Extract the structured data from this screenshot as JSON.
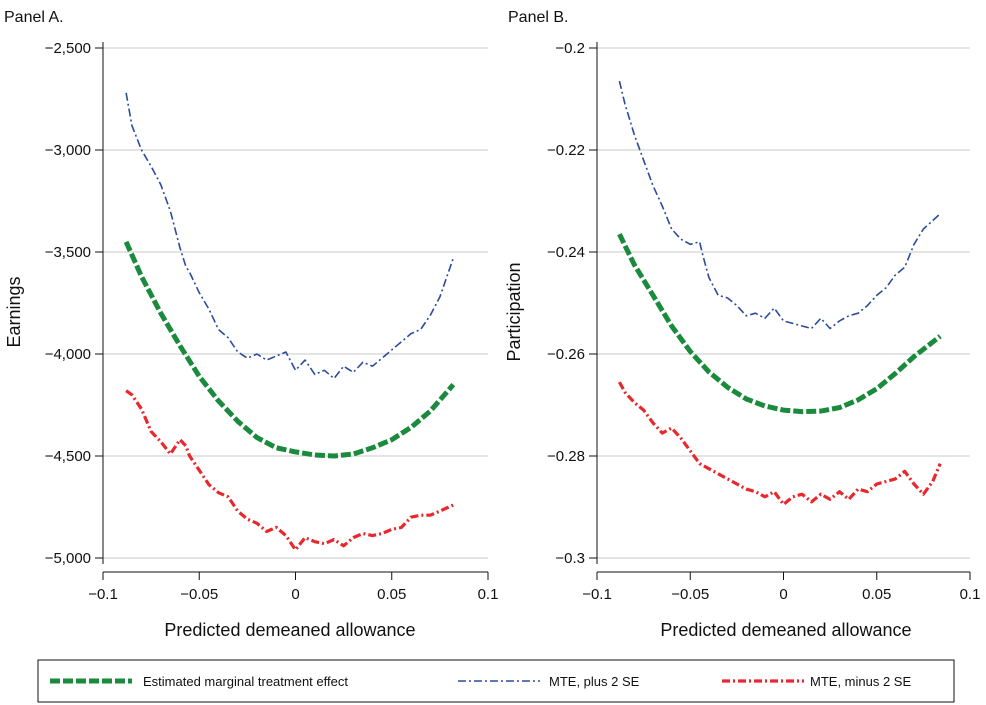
{
  "chart_data": [
    {
      "type": "line",
      "title": "Panel A.",
      "xlabel": "Predicted demeaned allowance",
      "ylabel": "Earnings",
      "xlim": [
        -0.1,
        0.1
      ],
      "ylim": [
        -5000,
        -2500
      ],
      "x_ticks": [
        -0.1,
        -0.05,
        0,
        0.05,
        0.1
      ],
      "x_tick_labels": [
        "−0.1",
        "−0.05",
        "0",
        "0.05",
        "0.1"
      ],
      "y_ticks": [
        -2500,
        -3000,
        -3500,
        -4000,
        -4500,
        -5000
      ],
      "y_tick_labels": [
        "−2,500",
        "−3,000",
        "−3,500",
        "−4,000",
        "−4,500",
        "−5,000"
      ],
      "grid": true,
      "series": [
        {
          "name": "Estimated marginal treatment effect",
          "color": "#1a8a3c",
          "x": [
            -0.088,
            -0.08,
            -0.07,
            -0.06,
            -0.05,
            -0.04,
            -0.03,
            -0.02,
            -0.01,
            0,
            0.01,
            0.02,
            0.03,
            0.04,
            0.05,
            0.06,
            0.07,
            0.082
          ],
          "y": [
            -3450,
            -3620,
            -3800,
            -3960,
            -4110,
            -4230,
            -4330,
            -4410,
            -4460,
            -4480,
            -4495,
            -4500,
            -4490,
            -4460,
            -4420,
            -4360,
            -4280,
            -4150
          ]
        },
        {
          "name": "MTE, plus 2 SE",
          "color": "#2b4c9c",
          "x": [
            -0.088,
            -0.085,
            -0.08,
            -0.075,
            -0.07,
            -0.065,
            -0.06,
            -0.057,
            -0.055,
            -0.05,
            -0.045,
            -0.04,
            -0.035,
            -0.03,
            -0.025,
            -0.02,
            -0.015,
            -0.01,
            -0.005,
            0,
            0.005,
            0.01,
            0.015,
            0.02,
            0.025,
            0.03,
            0.035,
            0.04,
            0.045,
            0.05,
            0.055,
            0.06,
            0.065,
            0.07,
            0.075,
            0.082
          ],
          "y": [
            -2720,
            -2880,
            -3000,
            -3080,
            -3170,
            -3300,
            -3480,
            -3570,
            -3600,
            -3700,
            -3780,
            -3880,
            -3920,
            -3990,
            -4020,
            -4000,
            -4030,
            -4010,
            -3990,
            -4080,
            -4030,
            -4100,
            -4080,
            -4120,
            -4060,
            -4090,
            -4040,
            -4060,
            -4020,
            -3980,
            -3940,
            -3900,
            -3880,
            -3810,
            -3720,
            -3530
          ]
        },
        {
          "name": "MTE, minus 2 SE",
          "color": "#e8282c",
          "x": [
            -0.088,
            -0.085,
            -0.08,
            -0.075,
            -0.07,
            -0.065,
            -0.06,
            -0.057,
            -0.055,
            -0.05,
            -0.045,
            -0.04,
            -0.035,
            -0.03,
            -0.025,
            -0.02,
            -0.015,
            -0.01,
            -0.005,
            0,
            0.005,
            0.01,
            0.015,
            0.02,
            0.025,
            0.03,
            0.035,
            0.04,
            0.045,
            0.05,
            0.055,
            0.06,
            0.065,
            0.07,
            0.075,
            0.082
          ],
          "y": [
            -4180,
            -4200,
            -4270,
            -4380,
            -4430,
            -4490,
            -4420,
            -4450,
            -4500,
            -4570,
            -4640,
            -4680,
            -4700,
            -4770,
            -4810,
            -4830,
            -4870,
            -4850,
            -4890,
            -4960,
            -4900,
            -4920,
            -4930,
            -4910,
            -4940,
            -4900,
            -4880,
            -4890,
            -4880,
            -4860,
            -4850,
            -4800,
            -4790,
            -4790,
            -4770,
            -4740
          ]
        }
      ]
    },
    {
      "type": "line",
      "title": "Panel B.",
      "xlabel": "Predicted demeaned allowance",
      "ylabel": "Participation",
      "xlim": [
        -0.1,
        0.1
      ],
      "ylim": [
        -0.3,
        -0.2
      ],
      "x_ticks": [
        -0.1,
        -0.05,
        0,
        0.05,
        0.1
      ],
      "x_tick_labels": [
        "−0.1",
        "−0.05",
        "0",
        "0.05",
        "0.1"
      ],
      "y_ticks": [
        -0.2,
        -0.22,
        -0.24,
        -0.26,
        -0.28,
        -0.3
      ],
      "y_tick_labels": [
        "−0.2",
        "−0.22",
        "−0.24",
        "−0.26",
        "−0.28",
        "−0.3"
      ],
      "grid": true,
      "series": [
        {
          "name": "Estimated marginal treatment effect",
          "color": "#1a8a3c",
          "x": [
            -0.088,
            -0.08,
            -0.07,
            -0.06,
            -0.05,
            -0.04,
            -0.03,
            -0.02,
            -0.01,
            0,
            0.01,
            0.02,
            0.03,
            0.04,
            0.05,
            0.06,
            0.07,
            0.084
          ],
          "y": [
            -0.2365,
            -0.2425,
            -0.2485,
            -0.2545,
            -0.2595,
            -0.2635,
            -0.2665,
            -0.2688,
            -0.2702,
            -0.271,
            -0.2713,
            -0.2712,
            -0.2705,
            -0.269,
            -0.2668,
            -0.2638,
            -0.2605,
            -0.2565
          ]
        },
        {
          "name": "MTE, plus 2 SE",
          "color": "#2b4c9c",
          "x": [
            -0.088,
            -0.085,
            -0.08,
            -0.075,
            -0.07,
            -0.065,
            -0.06,
            -0.055,
            -0.05,
            -0.045,
            -0.043,
            -0.04,
            -0.035,
            -0.03,
            -0.025,
            -0.02,
            -0.015,
            -0.01,
            -0.005,
            0,
            0.005,
            0.01,
            0.015,
            0.02,
            0.025,
            0.03,
            0.035,
            0.04,
            0.045,
            0.05,
            0.055,
            0.06,
            0.065,
            0.07,
            0.075,
            0.084
          ],
          "y": [
            -0.2065,
            -0.211,
            -0.217,
            -0.222,
            -0.227,
            -0.231,
            -0.2355,
            -0.2375,
            -0.2385,
            -0.238,
            -0.241,
            -0.245,
            -0.2485,
            -0.249,
            -0.2505,
            -0.2525,
            -0.252,
            -0.253,
            -0.251,
            -0.2535,
            -0.254,
            -0.2545,
            -0.255,
            -0.253,
            -0.255,
            -0.2535,
            -0.2525,
            -0.252,
            -0.2505,
            -0.2485,
            -0.247,
            -0.2445,
            -0.243,
            -0.2385,
            -0.2355,
            -0.2325
          ]
        },
        {
          "name": "MTE, minus 2 SE",
          "color": "#e8282c",
          "x": [
            -0.088,
            -0.085,
            -0.08,
            -0.075,
            -0.07,
            -0.065,
            -0.06,
            -0.055,
            -0.05,
            -0.045,
            -0.04,
            -0.035,
            -0.03,
            -0.025,
            -0.02,
            -0.015,
            -0.01,
            -0.005,
            0,
            0.005,
            0.01,
            0.015,
            0.02,
            0.025,
            0.03,
            0.035,
            0.04,
            0.045,
            0.05,
            0.055,
            0.06,
            0.065,
            0.07,
            0.075,
            0.08,
            0.084
          ],
          "y": [
            -0.2655,
            -0.2675,
            -0.2695,
            -0.271,
            -0.2735,
            -0.2755,
            -0.2745,
            -0.2765,
            -0.279,
            -0.2815,
            -0.2825,
            -0.2835,
            -0.2845,
            -0.2855,
            -0.2865,
            -0.287,
            -0.288,
            -0.287,
            -0.2895,
            -0.288,
            -0.2875,
            -0.289,
            -0.2875,
            -0.2885,
            -0.287,
            -0.2885,
            -0.2865,
            -0.287,
            -0.2855,
            -0.285,
            -0.2845,
            -0.283,
            -0.2855,
            -0.2875,
            -0.285,
            -0.2815
          ]
        }
      ]
    }
  ],
  "legend": {
    "items": [
      {
        "label": "Estimated marginal treatment effect",
        "color": "#1a8a3c"
      },
      {
        "label": "MTE, plus 2 SE",
        "color": "#2b4c9c"
      },
      {
        "label": "MTE, minus 2 SE",
        "color": "#e8282c"
      }
    ]
  }
}
